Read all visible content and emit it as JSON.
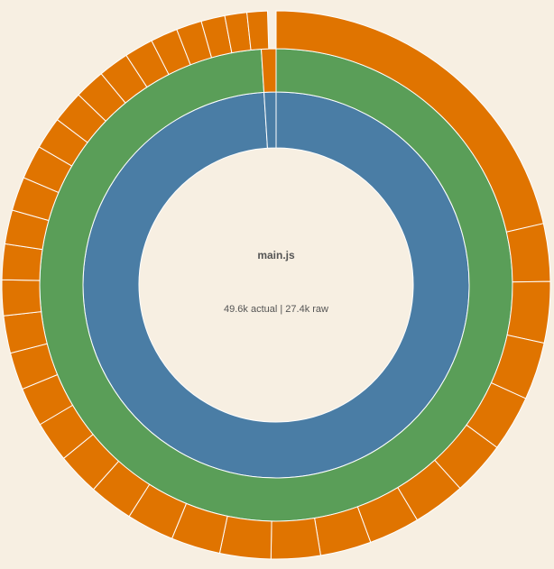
{
  "chart_data": {
    "type": "sunburst",
    "title": "main.js",
    "subtitle": "49.6k actual | 27.4k raw",
    "rings": [
      {
        "values": [
          99,
          1
        ],
        "colors": [
          "#4a7da5",
          "#4a7da5"
        ]
      },
      {
        "values": [
          99,
          1
        ],
        "colors": [
          "#5a9e58",
          "#e07400"
        ]
      },
      {
        "values": [
          21.4,
          3.4,
          3.6,
          3.4,
          3.3,
          3.2,
          3.1,
          3.0,
          3.0,
          2.9,
          3.0,
          2.9,
          2.8,
          2.6,
          2.5,
          2.4,
          2.3,
          2.2,
          2.2,
          2.1,
          2.1,
          2.0,
          2.0,
          2.0,
          1.9,
          1.9,
          1.8,
          1.8,
          1.7,
          1.6,
          1.5,
          1.4,
          1.3,
          1.2
        ],
        "colors": [
          "#e07400",
          "#e07400",
          "#e07400",
          "#e07400",
          "#e07400",
          "#e07400",
          "#e07400",
          "#e07400",
          "#e07400",
          "#e07400",
          "#e07400",
          "#e07400",
          "#e07400",
          "#e07400",
          "#e07400",
          "#e07400",
          "#e07400",
          "#e07400",
          "#e07400",
          "#e07400",
          "#e07400",
          "#e07400",
          "#e07400",
          "#e07400",
          "#e07400",
          "#e07400",
          "#e07400",
          "#e07400",
          "#e07400",
          "#e07400",
          "#e07400",
          "#e07400",
          "#e07400",
          "#e07400"
        ]
      }
    ]
  }
}
